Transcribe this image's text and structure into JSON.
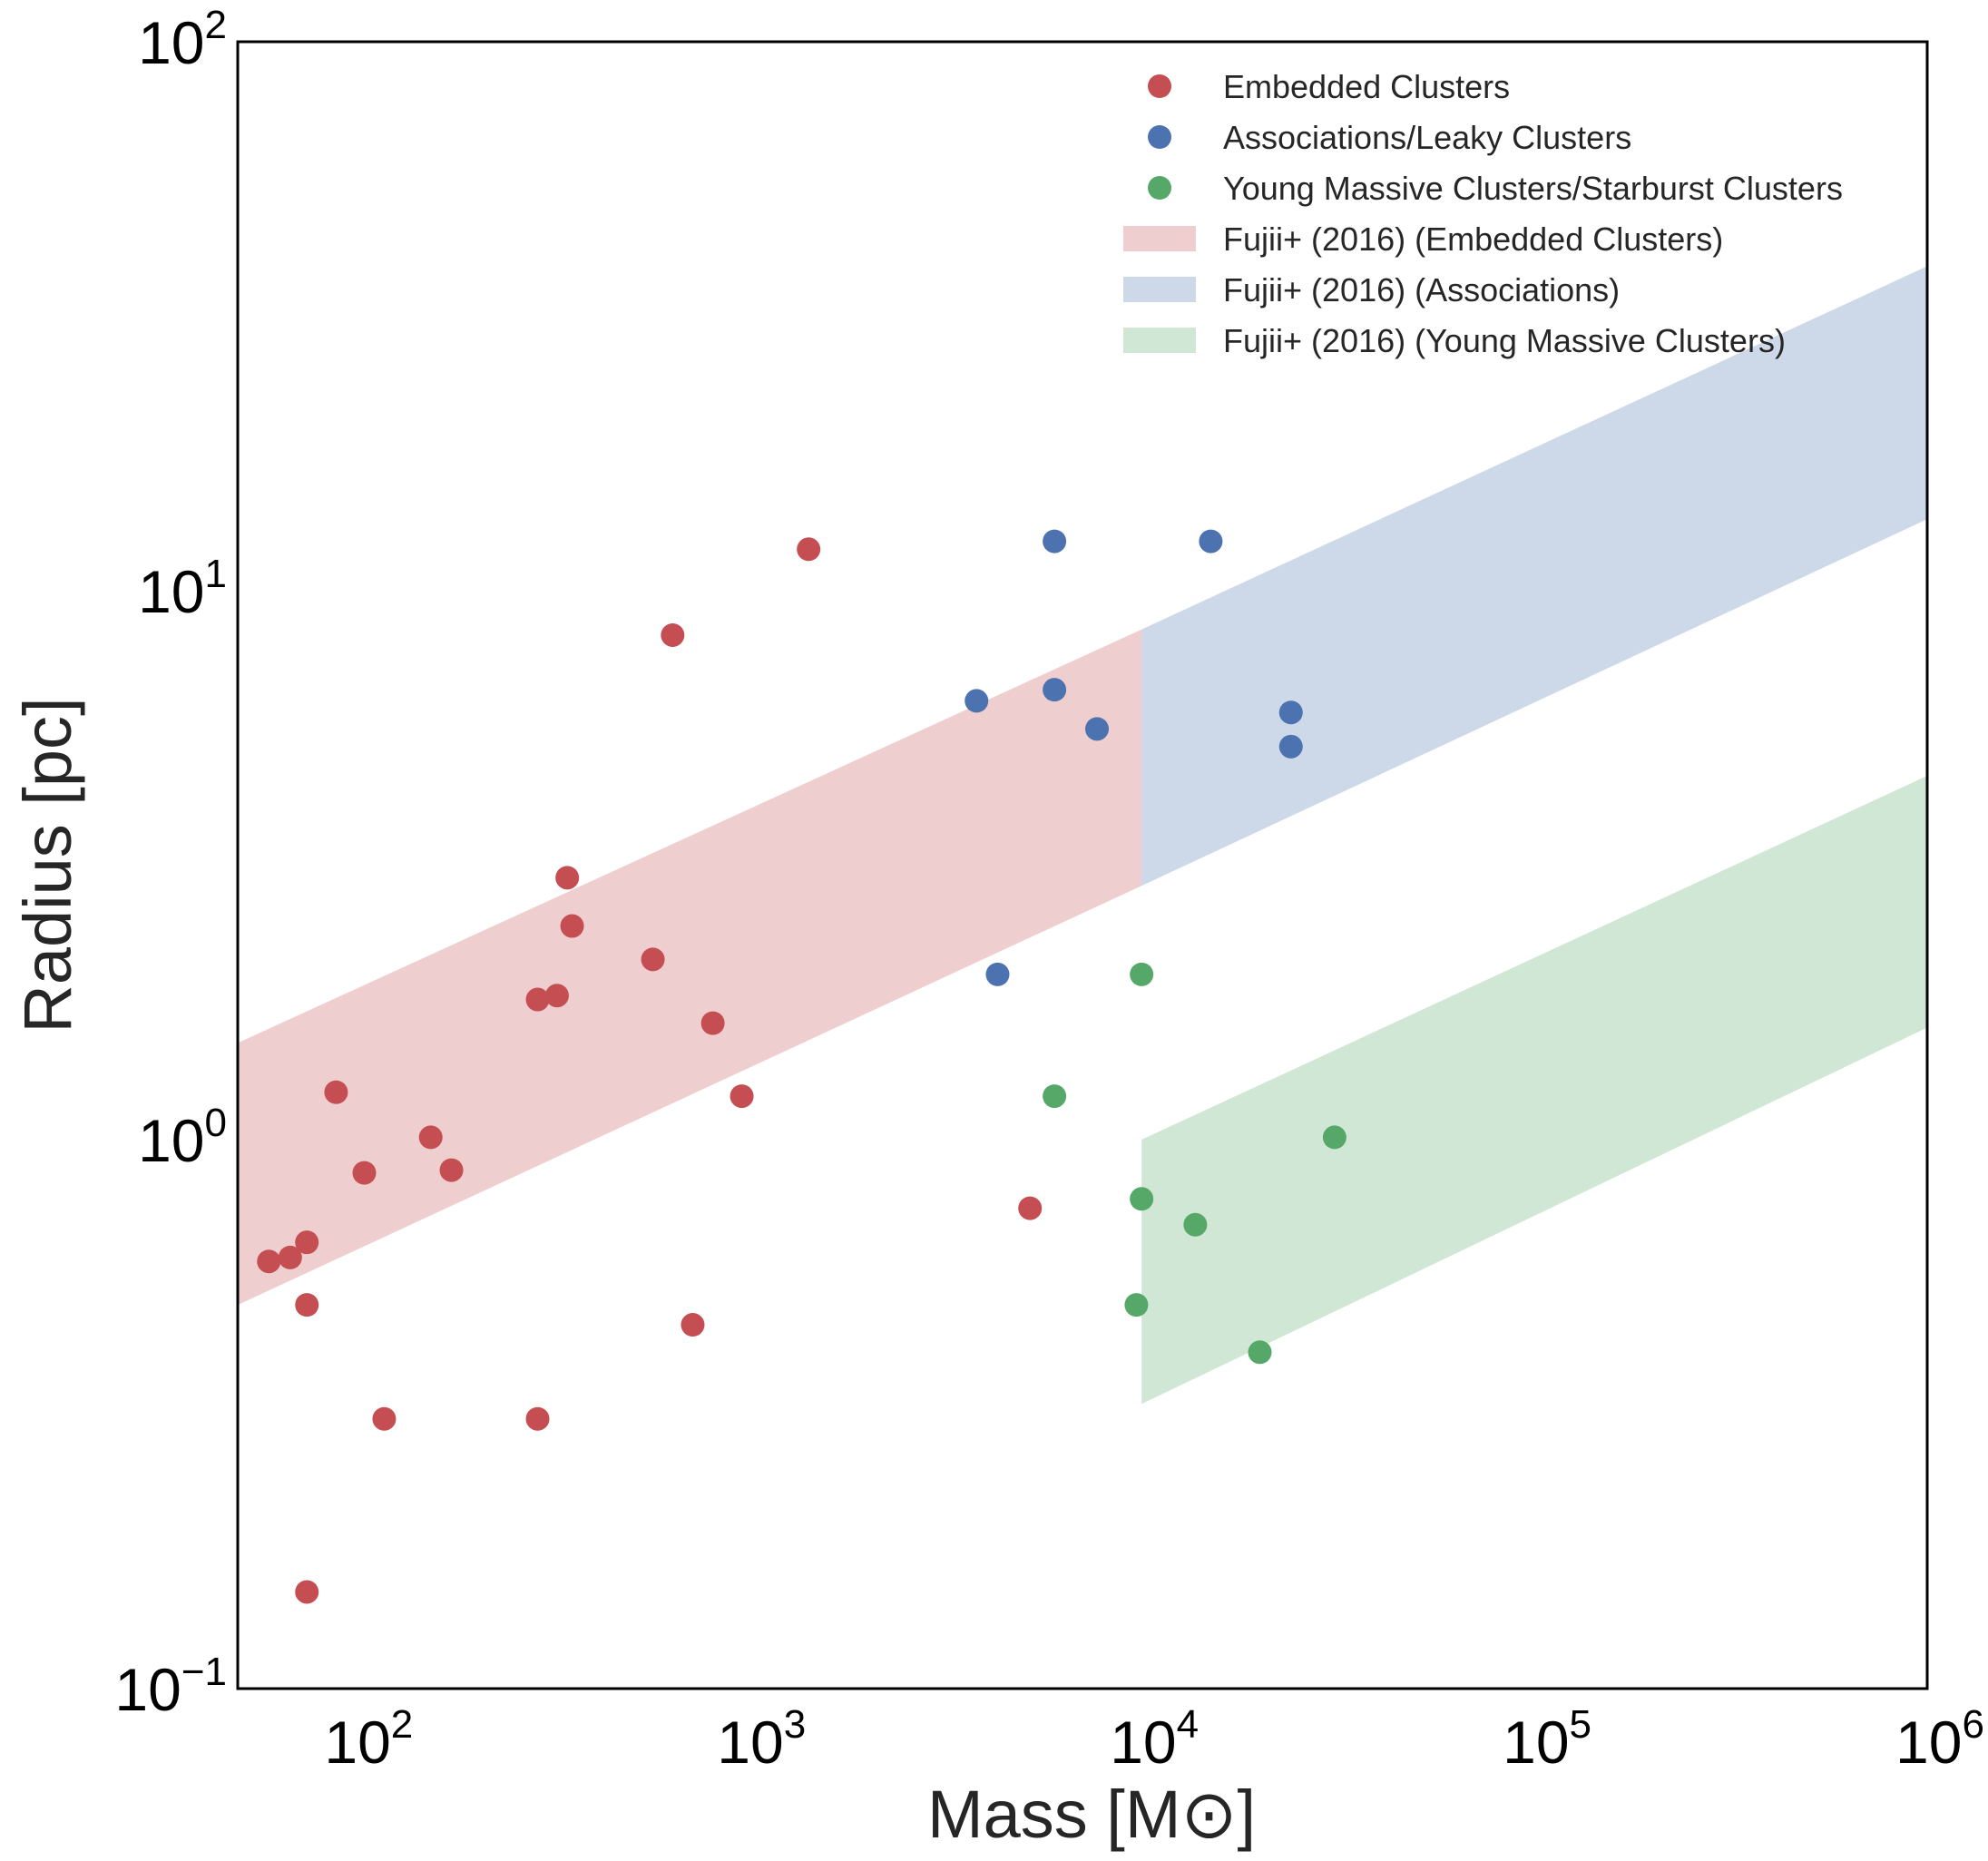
{
  "chart_data": {
    "type": "scatter",
    "title": "",
    "xlabel": "Mass [M⊙]",
    "ylabel": "Radius [pc]",
    "xscale": "log",
    "yscale": "log",
    "xlim": [
      50,
      1000000
    ],
    "ylim": [
      0.1,
      100
    ],
    "grid": false,
    "legend_position": "top-right",
    "x_ticks": [
      {
        "value": 100,
        "base": "10",
        "exp": "2"
      },
      {
        "value": 1000,
        "base": "10",
        "exp": "3"
      },
      {
        "value": 10000,
        "base": "10",
        "exp": "4"
      },
      {
        "value": 100000,
        "base": "10",
        "exp": "5"
      },
      {
        "value": 1000000,
        "base": "10",
        "exp": "6"
      }
    ],
    "y_ticks": [
      {
        "value": 0.1,
        "base": "10",
        "exp": "−1"
      },
      {
        "value": 1,
        "base": "10",
        "exp": "0"
      },
      {
        "value": 10,
        "base": "10",
        "exp": "1"
      },
      {
        "value": 100,
        "base": "10",
        "exp": "2"
      }
    ],
    "series": [
      {
        "name": "Embedded Clusters",
        "color": "#c44e52",
        "points": [
          [
            60,
            0.6
          ],
          [
            68,
            0.61
          ],
          [
            75,
            0.65
          ],
          [
            75,
            0.5
          ],
          [
            75,
            0.15
          ],
          [
            89,
            1.22
          ],
          [
            105,
            0.87
          ],
          [
            118,
            0.31
          ],
          [
            155,
            1.01
          ],
          [
            175,
            0.88
          ],
          [
            290,
            1.8
          ],
          [
            290,
            0.31
          ],
          [
            325,
            1.83
          ],
          [
            345,
            3.0
          ],
          [
            355,
            2.45
          ],
          [
            570,
            2.13
          ],
          [
            640,
            8.3
          ],
          [
            720,
            0.46
          ],
          [
            810,
            1.63
          ],
          [
            960,
            1.2
          ],
          [
            1420,
            11.9
          ],
          [
            5200,
            0.75
          ]
        ]
      },
      {
        "name": "Associations/Leaky Clusters",
        "color": "#4c72b0",
        "points": [
          [
            3800,
            6.3
          ],
          [
            4300,
            2.0
          ],
          [
            6000,
            12.3
          ],
          [
            6000,
            6.6
          ],
          [
            7700,
            5.6
          ],
          [
            15000,
            12.3
          ],
          [
            24000,
            6.0
          ],
          [
            24000,
            5.2
          ]
        ]
      },
      {
        "name": "Young Massive Clusters/Starburst Clusters",
        "color": "#55a868",
        "points": [
          [
            6000,
            1.2
          ],
          [
            9700,
            0.5
          ],
          [
            10000,
            2.0
          ],
          [
            10000,
            0.78
          ],
          [
            13700,
            0.7
          ],
          [
            20000,
            0.41
          ],
          [
            31000,
            1.01
          ]
        ]
      }
    ],
    "bands": [
      {
        "name": "Fujii+ (2016) (Embedded Clusters)",
        "color": "#c44e52",
        "x": [
          50,
          10000
        ],
        "lower": [
          0.5,
          2.9
        ],
        "upper": [
          1.5,
          8.5
        ]
      },
      {
        "name": "Fujii+ (2016) (Associations)",
        "color": "#4c72b0",
        "x": [
          10000,
          1000000
        ],
        "lower": [
          2.9,
          13.5
        ],
        "upper": [
          8.5,
          39
        ]
      },
      {
        "name": "Fujii+ (2016) (Young Massive Clusters)",
        "color": "#55a868",
        "x": [
          10000,
          1000000
        ],
        "lower": [
          0.33,
          1.6
        ],
        "upper": [
          1.0,
          4.6
        ]
      }
    ],
    "legend": [
      {
        "label": "Embedded Clusters",
        "kind": "marker",
        "color": "#c44e52"
      },
      {
        "label": "Associations/Leaky Clusters",
        "kind": "marker",
        "color": "#4c72b0"
      },
      {
        "label": "Young Massive Clusters/Starburst Clusters",
        "kind": "marker",
        "color": "#55a868"
      },
      {
        "label": "Fujii+ (2016) (Embedded Clusters)",
        "kind": "patch",
        "color": "#c44e52"
      },
      {
        "label": "Fujii+ (2016) (Associations)",
        "kind": "patch",
        "color": "#4c72b0"
      },
      {
        "label": "Fujii+ (2016) (Young Massive Clusters)",
        "kind": "patch",
        "color": "#55a868"
      }
    ]
  }
}
